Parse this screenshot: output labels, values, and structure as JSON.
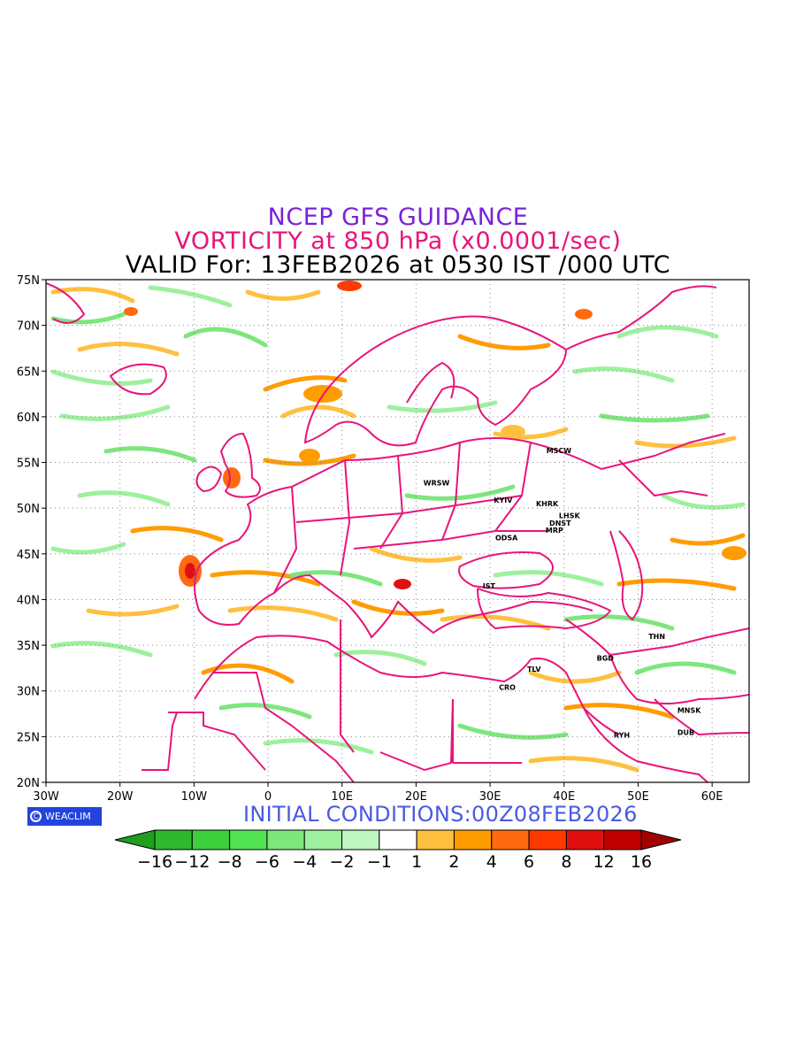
{
  "titles": {
    "line1": "NCEP GFS GUIDANCE",
    "line2": "VORTICITY at 850 hPa (x0.0001/sec)",
    "line3": "VALID For: 13FEB2026 at 0530 IST /000 UTC"
  },
  "map": {
    "lon_range": [
      -30,
      65
    ],
    "lat_range": [
      20,
      75
    ],
    "x_ticks": [
      "30W",
      "20W",
      "10W",
      "0",
      "10E",
      "20E",
      "30E",
      "40E",
      "50E",
      "60E"
    ],
    "x_tick_values": [
      -30,
      -20,
      -10,
      0,
      10,
      20,
      30,
      40,
      50,
      60
    ],
    "y_ticks": [
      "20N",
      "25N",
      "30N",
      "35N",
      "40N",
      "45N",
      "50N",
      "55N",
      "60N",
      "65N",
      "70N",
      "75N"
    ],
    "y_tick_values": [
      20,
      25,
      30,
      35,
      40,
      45,
      50,
      55,
      60,
      65,
      70,
      75
    ],
    "grid": "dotted",
    "border_color": "#e8157a",
    "cities": [
      {
        "name": "MSCW",
        "lon": 37.6,
        "lat": 56.0
      },
      {
        "name": "WRSW",
        "lon": 21.0,
        "lat": 52.5
      },
      {
        "name": "KYIV",
        "lon": 30.5,
        "lat": 50.6
      },
      {
        "name": "KHRK",
        "lon": 36.2,
        "lat": 50.2
      },
      {
        "name": "LHSK",
        "lon": 39.3,
        "lat": 48.9
      },
      {
        "name": "DNST",
        "lon": 38.0,
        "lat": 48.1
      },
      {
        "name": "MRP",
        "lon": 37.5,
        "lat": 47.3
      },
      {
        "name": "ODSA",
        "lon": 30.7,
        "lat": 46.5
      },
      {
        "name": "IST",
        "lon": 29.0,
        "lat": 41.2
      },
      {
        "name": "THN",
        "lon": 51.4,
        "lat": 35.7
      },
      {
        "name": "BGD",
        "lon": 44.4,
        "lat": 33.3
      },
      {
        "name": "TLV",
        "lon": 35.0,
        "lat": 32.1
      },
      {
        "name": "CRO",
        "lon": 31.2,
        "lat": 30.1
      },
      {
        "name": "MNSK",
        "lon": 55.3,
        "lat": 27.6
      },
      {
        "name": "DUB",
        "lon": 55.3,
        "lat": 25.2
      },
      {
        "name": "RYH",
        "lon": 46.7,
        "lat": 24.9
      }
    ]
  },
  "logo": {
    "text": "WEACLIM",
    "symbol": "C"
  },
  "initial_conditions": "INITIAL CONDITIONS:00Z08FEB2026",
  "colorbar": {
    "labels": [
      "−16",
      "−12",
      "−8",
      "−6",
      "−4",
      "−2",
      "−1",
      "1",
      "2",
      "4",
      "6",
      "8",
      "12",
      "16"
    ],
    "colors": [
      "#1f9e1f",
      "#2db82d",
      "#3ccf3c",
      "#52e352",
      "#7de67d",
      "#9ef09e",
      "#bff5bf",
      "#ffffff",
      "#ffc040",
      "#ff9c00",
      "#ff6a10",
      "#ff3a00",
      "#e01010",
      "#c00000",
      "#a00000"
    ]
  }
}
